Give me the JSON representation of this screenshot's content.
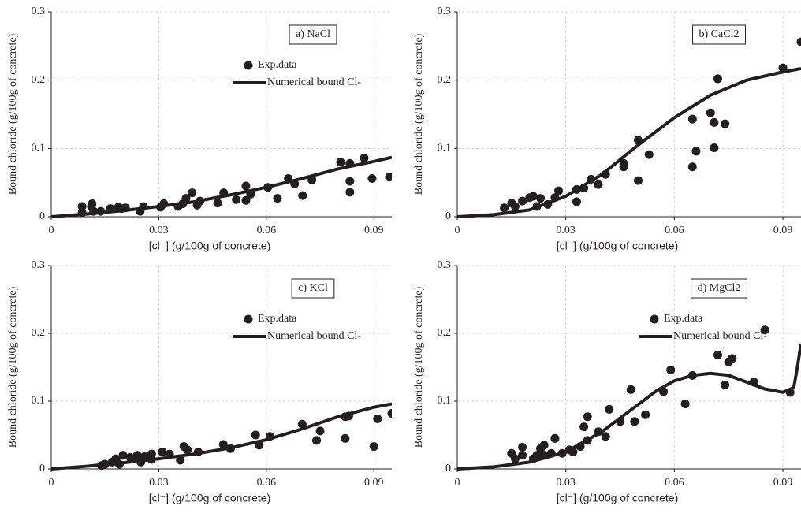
{
  "chart_data": [
    {
      "type": "scatter",
      "title": "a) NaCl",
      "x_label": "[cl⁻] (g/100g of concrete)",
      "y_label": "Bound chloride (g/100g of concrete)",
      "xlim": [
        0,
        0.095
      ],
      "ylim": [
        0,
        0.3
      ],
      "xticks": [
        0,
        0.03,
        0.06,
        0.09
      ],
      "yticks": [
        0,
        0.1,
        0.2,
        0.3
      ],
      "grid": true,
      "legend": "upper right",
      "series": [
        {
          "name": "Exp.data",
          "style": "points",
          "color": "#231f20",
          "x": [
            0.0086,
            0.0086,
            0.0112,
            0.0118,
            0.0114,
            0.0138,
            0.0165,
            0.0187,
            0.0196,
            0.0207,
            0.0248,
            0.0257,
            0.0305,
            0.0314,
            0.0354,
            0.0367,
            0.0376,
            0.0393,
            0.0407,
            0.0415,
            0.0464,
            0.0481,
            0.0516,
            0.0543,
            0.0543,
            0.0556,
            0.0604,
            0.0631,
            0.0661,
            0.0679,
            0.0701,
            0.0727,
            0.0807,
            0.0833,
            0.0833,
            0.0833,
            0.0873,
            0.0895,
            0.0943
          ],
          "values": [
            0.015,
            0.006,
            0.015,
            0.008,
            0.019,
            0.008,
            0.012,
            0.014,
            0.012,
            0.013,
            0.008,
            0.015,
            0.014,
            0.019,
            0.015,
            0.019,
            0.027,
            0.035,
            0.017,
            0.023,
            0.02,
            0.035,
            0.025,
            0.045,
            0.024,
            0.033,
            0.043,
            0.027,
            0.056,
            0.048,
            0.031,
            0.054,
            0.08,
            0.078,
            0.052,
            0.036,
            0.086,
            0.056,
            0.058
          ]
        },
        {
          "name": "Numerical bound Cl-",
          "style": "line",
          "color": "#231f20",
          "x": [
            0,
            0.01,
            0.02,
            0.03,
            0.04,
            0.05,
            0.06,
            0.07,
            0.08,
            0.09,
            0.095
          ],
          "values": [
            0,
            0.004,
            0.009,
            0.015,
            0.022,
            0.032,
            0.043,
            0.056,
            0.07,
            0.081,
            0.087
          ]
        }
      ]
    },
    {
      "type": "scatter",
      "title": "b) CaCl2",
      "x_label": "[cl⁻] (g/100g of concrete)",
      "y_label": "Bound chloride (g/100g of concrete)",
      "xlim": [
        0,
        0.095
      ],
      "ylim": [
        0,
        0.3
      ],
      "xticks": [
        0,
        0.03,
        0.06,
        0.09
      ],
      "yticks": [
        0,
        0.1,
        0.2,
        0.3
      ],
      "grid": true,
      "series": [
        {
          "name": "Exp.data",
          "style": "points",
          "color": "#231f20",
          "x": [
            0.013,
            0.015,
            0.016,
            0.018,
            0.02,
            0.021,
            0.022,
            0.023,
            0.025,
            0.027,
            0.028,
            0.033,
            0.033,
            0.035,
            0.037,
            0.039,
            0.041,
            0.046,
            0.046,
            0.05,
            0.05,
            0.053,
            0.065,
            0.065,
            0.066,
            0.07,
            0.071,
            0.071,
            0.072,
            0.074,
            0.09,
            0.095
          ],
          "values": [
            0.013,
            0.02,
            0.015,
            0.023,
            0.028,
            0.03,
            0.015,
            0.027,
            0.018,
            0.028,
            0.038,
            0.022,
            0.04,
            0.042,
            0.055,
            0.047,
            0.062,
            0.073,
            0.078,
            0.112,
            0.053,
            0.091,
            0.073,
            0.143,
            0.096,
            0.152,
            0.138,
            0.101,
            0.202,
            0.136,
            0.218,
            0.256
          ]
        },
        {
          "name": "Numerical bound Cl-",
          "style": "line",
          "color": "#231f20",
          "x": [
            0,
            0.01,
            0.02,
            0.03,
            0.04,
            0.05,
            0.06,
            0.07,
            0.08,
            0.09,
            0.095
          ],
          "values": [
            0,
            0.003,
            0.01,
            0.03,
            0.062,
            0.105,
            0.145,
            0.178,
            0.2,
            0.212,
            0.217
          ]
        }
      ]
    },
    {
      "type": "scatter",
      "title": "c) KCl",
      "x_label": "[cl⁻] (g/100g of concrete)",
      "y_label": "Bound chloride (g/100g of concrete)",
      "xlim": [
        0,
        0.095
      ],
      "ylim": [
        0,
        0.3
      ],
      "xticks": [
        0,
        0.03,
        0.06,
        0.09
      ],
      "yticks": [
        0,
        0.1,
        0.2,
        0.3
      ],
      "grid": true,
      "legend": "upper right",
      "series": [
        {
          "name": "Exp.data",
          "style": "points",
          "color": "#231f20",
          "x": [
            0.014,
            0.015,
            0.017,
            0.018,
            0.019,
            0.02,
            0.022,
            0.024,
            0.024,
            0.025,
            0.026,
            0.028,
            0.028,
            0.031,
            0.033,
            0.036,
            0.037,
            0.038,
            0.041,
            0.048,
            0.05,
            0.057,
            0.058,
            0.061,
            0.07,
            0.074,
            0.075,
            0.082,
            0.082,
            0.083,
            0.09,
            0.091,
            0.095
          ],
          "values": [
            0.005,
            0.007,
            0.01,
            0.015,
            0.007,
            0.02,
            0.017,
            0.015,
            0.02,
            0.01,
            0.018,
            0.022,
            0.014,
            0.025,
            0.022,
            0.013,
            0.033,
            0.028,
            0.025,
            0.036,
            0.03,
            0.05,
            0.035,
            0.048,
            0.066,
            0.042,
            0.056,
            0.045,
            0.077,
            0.078,
            0.033,
            0.074,
            0.082
          ]
        },
        {
          "name": "Numerical bound Cl-",
          "style": "line",
          "color": "#231f20",
          "x": [
            0,
            0.01,
            0.02,
            0.03,
            0.04,
            0.05,
            0.06,
            0.07,
            0.08,
            0.09,
            0.095
          ],
          "values": [
            0,
            0.004,
            0.009,
            0.015,
            0.022,
            0.031,
            0.043,
            0.059,
            0.077,
            0.091,
            0.096
          ]
        }
      ]
    },
    {
      "type": "scatter",
      "title": "d) MgCl2",
      "x_label": "[cl⁻] (g/100g of concrete)",
      "y_label": "Bound chloride (g/100g of concrete)",
      "xlim": [
        0,
        0.095
      ],
      "ylim": [
        0,
        0.3
      ],
      "xticks": [
        0,
        0.03,
        0.06,
        0.09
      ],
      "yticks": [
        0,
        0.1,
        0.2,
        0.3
      ],
      "grid": true,
      "legend": "upper right",
      "series": [
        {
          "name": "Exp.data",
          "style": "points",
          "color": "#231f20",
          "x": [
            0.015,
            0.016,
            0.018,
            0.018,
            0.021,
            0.022,
            0.023,
            0.024,
            0.024,
            0.026,
            0.027,
            0.029,
            0.031,
            0.032,
            0.034,
            0.035,
            0.036,
            0.036,
            0.039,
            0.041,
            0.042,
            0.045,
            0.048,
            0.049,
            0.052,
            0.057,
            0.059,
            0.063,
            0.065,
            0.072,
            0.074,
            0.075,
            0.076,
            0.082,
            0.085,
            0.092
          ],
          "values": [
            0.023,
            0.015,
            0.032,
            0.02,
            0.015,
            0.02,
            0.03,
            0.035,
            0.02,
            0.023,
            0.045,
            0.023,
            0.028,
            0.025,
            0.033,
            0.062,
            0.077,
            0.042,
            0.055,
            0.048,
            0.088,
            0.07,
            0.117,
            0.07,
            0.08,
            0.114,
            0.146,
            0.096,
            0.138,
            0.168,
            0.124,
            0.158,
            0.163,
            0.128,
            0.205,
            0.113
          ]
        },
        {
          "name": "Numerical bound Cl-",
          "style": "line",
          "color": "#231f20",
          "x": [
            0,
            0.01,
            0.02,
            0.03,
            0.04,
            0.05,
            0.055,
            0.06,
            0.065,
            0.07,
            0.075,
            0.08,
            0.085,
            0.09,
            0.093,
            0.094,
            0.095
          ],
          "values": [
            0,
            0.003,
            0.01,
            0.025,
            0.055,
            0.095,
            0.115,
            0.13,
            0.138,
            0.141,
            0.138,
            0.128,
            0.118,
            0.113,
            0.12,
            0.15,
            0.185
          ]
        }
      ]
    }
  ]
}
